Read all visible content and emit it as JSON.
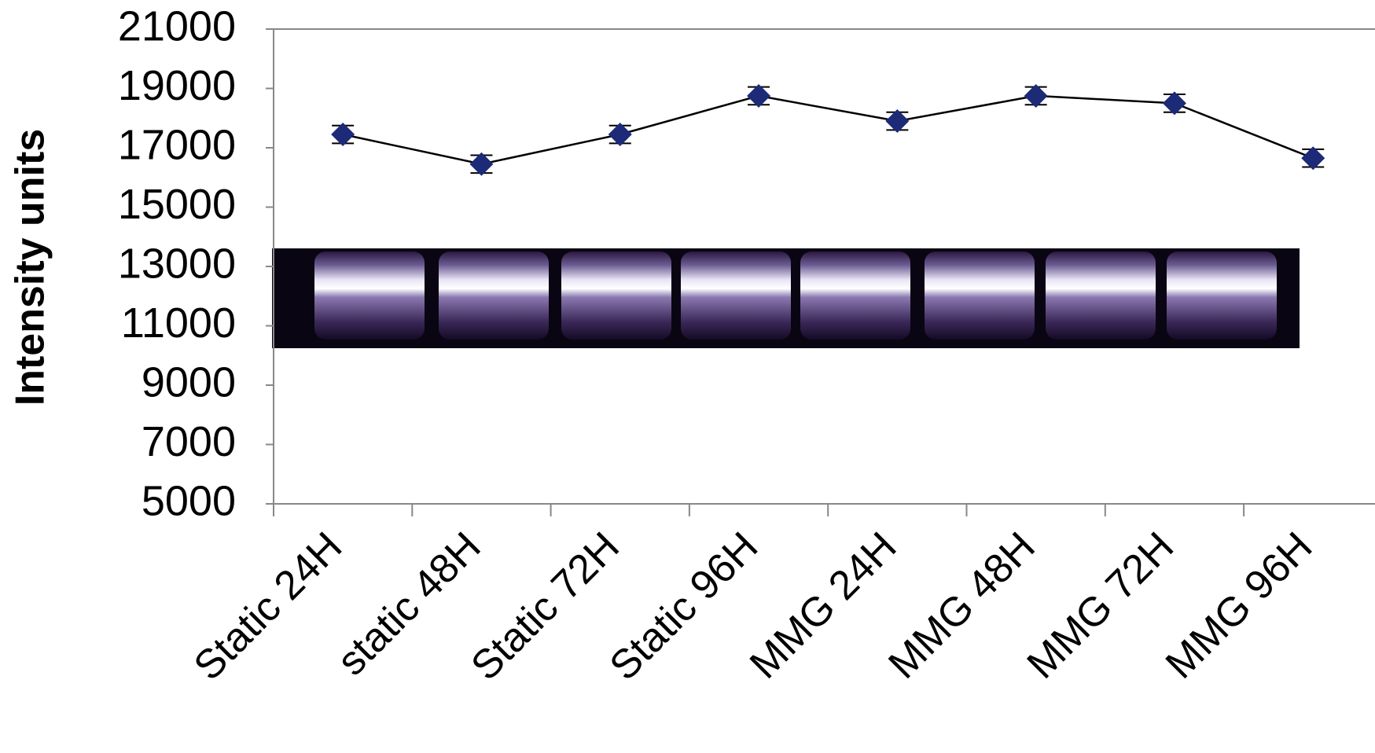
{
  "chart_data": {
    "type": "line",
    "y_label": "Intensity units",
    "categories": [
      "Static 24H",
      "static 48H",
      "Static 72H",
      "Static 96H",
      "MMG 24H",
      "MMG 48H",
      "MMG 72H",
      "MMG 96H"
    ],
    "values": [
      17450,
      16450,
      17450,
      18750,
      17900,
      18750,
      18500,
      16650
    ],
    "errors": [
      300,
      300,
      300,
      300,
      300,
      300,
      300,
      300
    ],
    "color": "#000000",
    "marker_color": "#1c2a78",
    "ylim": [
      5000,
      21000
    ],
    "yticks": [
      5000,
      7000,
      9000,
      11000,
      13000,
      15000,
      17000,
      19000,
      21000
    ],
    "grid": false
  }
}
